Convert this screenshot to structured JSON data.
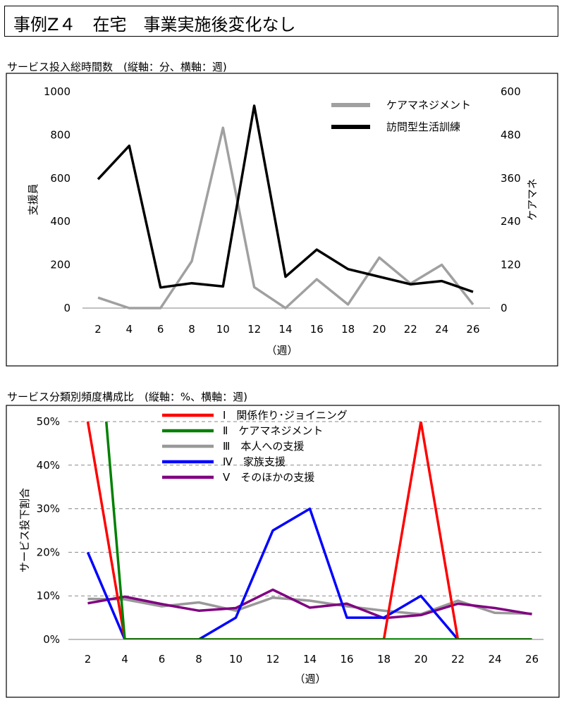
{
  "header": {
    "title": "事例Z４　在宅　事業実施後変化なし"
  },
  "chart_data": [
    {
      "type": "line",
      "title": "サービス投入総時間数　(縦軸：分、横軸：週)",
      "xlabel": "（週）",
      "ylabel": "支援員",
      "y2label": "ケアマネ",
      "x": [
        2,
        4,
        6,
        8,
        10,
        12,
        14,
        16,
        18,
        20,
        22,
        24,
        26
      ],
      "ylim": [
        0,
        1000
      ],
      "yticks": [
        "0",
        "200",
        "400",
        "600",
        "800",
        "1000"
      ],
      "y2lim": [
        0,
        600
      ],
      "y2ticks": [
        "0",
        "120",
        "240",
        "360",
        "480",
        "600"
      ],
      "grid": false,
      "legend_position": "top-right",
      "series": [
        {
          "name": "ケアマネジメント",
          "axis": "right",
          "color": "#a0a0a0",
          "values": [
            29,
            0,
            0,
            130,
            500,
            58,
            0,
            80,
            10,
            140,
            68,
            120,
            10
          ]
        },
        {
          "name": "訪問型生活訓練",
          "axis": "left",
          "color": "#000000",
          "values": [
            595,
            750,
            95,
            115,
            100,
            935,
            145,
            270,
            180,
            145,
            110,
            125,
            75
          ]
        }
      ]
    },
    {
      "type": "line",
      "title": "サービス分類別頻度構成比　(縦軸：%、横軸：週)",
      "xlabel": "（週）",
      "ylabel": "サービス投下割合",
      "x": [
        2,
        4,
        6,
        8,
        10,
        12,
        14,
        16,
        18,
        20,
        22,
        24,
        26
      ],
      "ylim": [
        0,
        50
      ],
      "yticks": [
        "0%",
        "10%",
        "20%",
        "30%",
        "40%",
        "50%"
      ],
      "grid": true,
      "legend_position": "top",
      "series": [
        {
          "name": "Ⅰ　関係作り･ジョイニング",
          "color": "#ff0000",
          "values": [
            50,
            0,
            0,
            0,
            0,
            0,
            0,
            0,
            0,
            50,
            0,
            0,
            0
          ]
        },
        {
          "name": "Ⅱ　ケアマネジメント",
          "color": "#008000",
          "values": [
            100,
            0,
            0,
            0,
            0,
            0,
            0,
            0,
            0,
            0,
            0,
            0,
            0
          ]
        },
        {
          "name": "Ⅲ　本人への支援",
          "color": "#999999",
          "values": [
            9.3,
            9.2,
            7.6,
            8.5,
            6.6,
            9.6,
            8.9,
            7.6,
            6.6,
            5.8,
            8.9,
            6.1,
            5.9
          ]
        },
        {
          "name": "Ⅳ　家族支援",
          "color": "#0000ff",
          "values": [
            20,
            0,
            0,
            0,
            5,
            25,
            30,
            5,
            5,
            10,
            0,
            0,
            0
          ]
        },
        {
          "name": "Ⅴ　そのほかの支援",
          "color": "#800080",
          "values": [
            8.3,
            9.8,
            8.1,
            6.6,
            7.2,
            11.4,
            7.3,
            8.2,
            4.9,
            5.6,
            8.2,
            7.2,
            5.8
          ]
        }
      ]
    }
  ]
}
